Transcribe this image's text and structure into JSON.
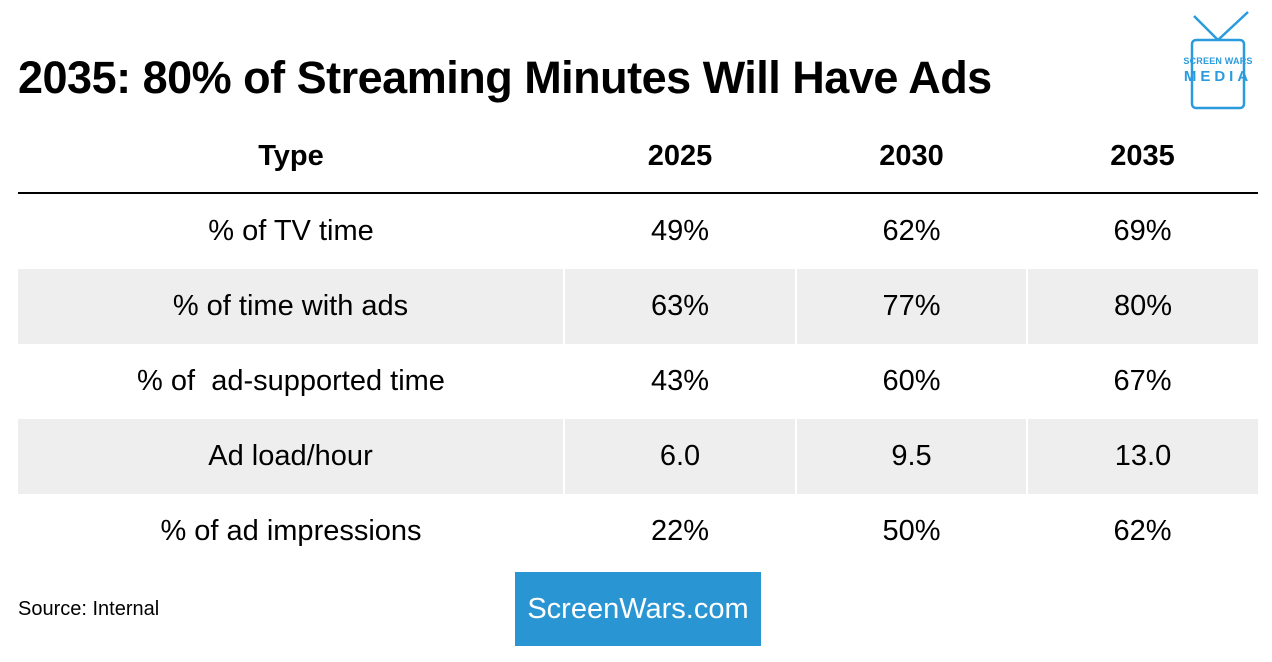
{
  "title": "2035: 80% of Streaming Minutes Will Have Ads",
  "logo": {
    "line1": "SCREEN WARS",
    "line2": "MEDIA",
    "icon": "tv-icon",
    "color": "#2a9bdd"
  },
  "chart_data": {
    "type": "table",
    "columns": [
      "Type",
      "2025",
      "2030",
      "2035"
    ],
    "rows": [
      {
        "label": "% of TV time",
        "values": [
          "49%",
          "62%",
          "69%"
        ]
      },
      {
        "label": "% of time with ads",
        "values": [
          "63%",
          "77%",
          "80%"
        ]
      },
      {
        "label": "% of  ad-supported time",
        "values": [
          "43%",
          "60%",
          "67%"
        ]
      },
      {
        "label": "Ad load/hour",
        "values": [
          "6.0",
          "9.5",
          "13.0"
        ]
      },
      {
        "label": "% of ad impressions",
        "values": [
          "22%",
          "50%",
          "62%"
        ]
      }
    ]
  },
  "footer": {
    "source": "Source: Internal",
    "site": "ScreenWars.com",
    "site_color": "#2a95d3"
  }
}
